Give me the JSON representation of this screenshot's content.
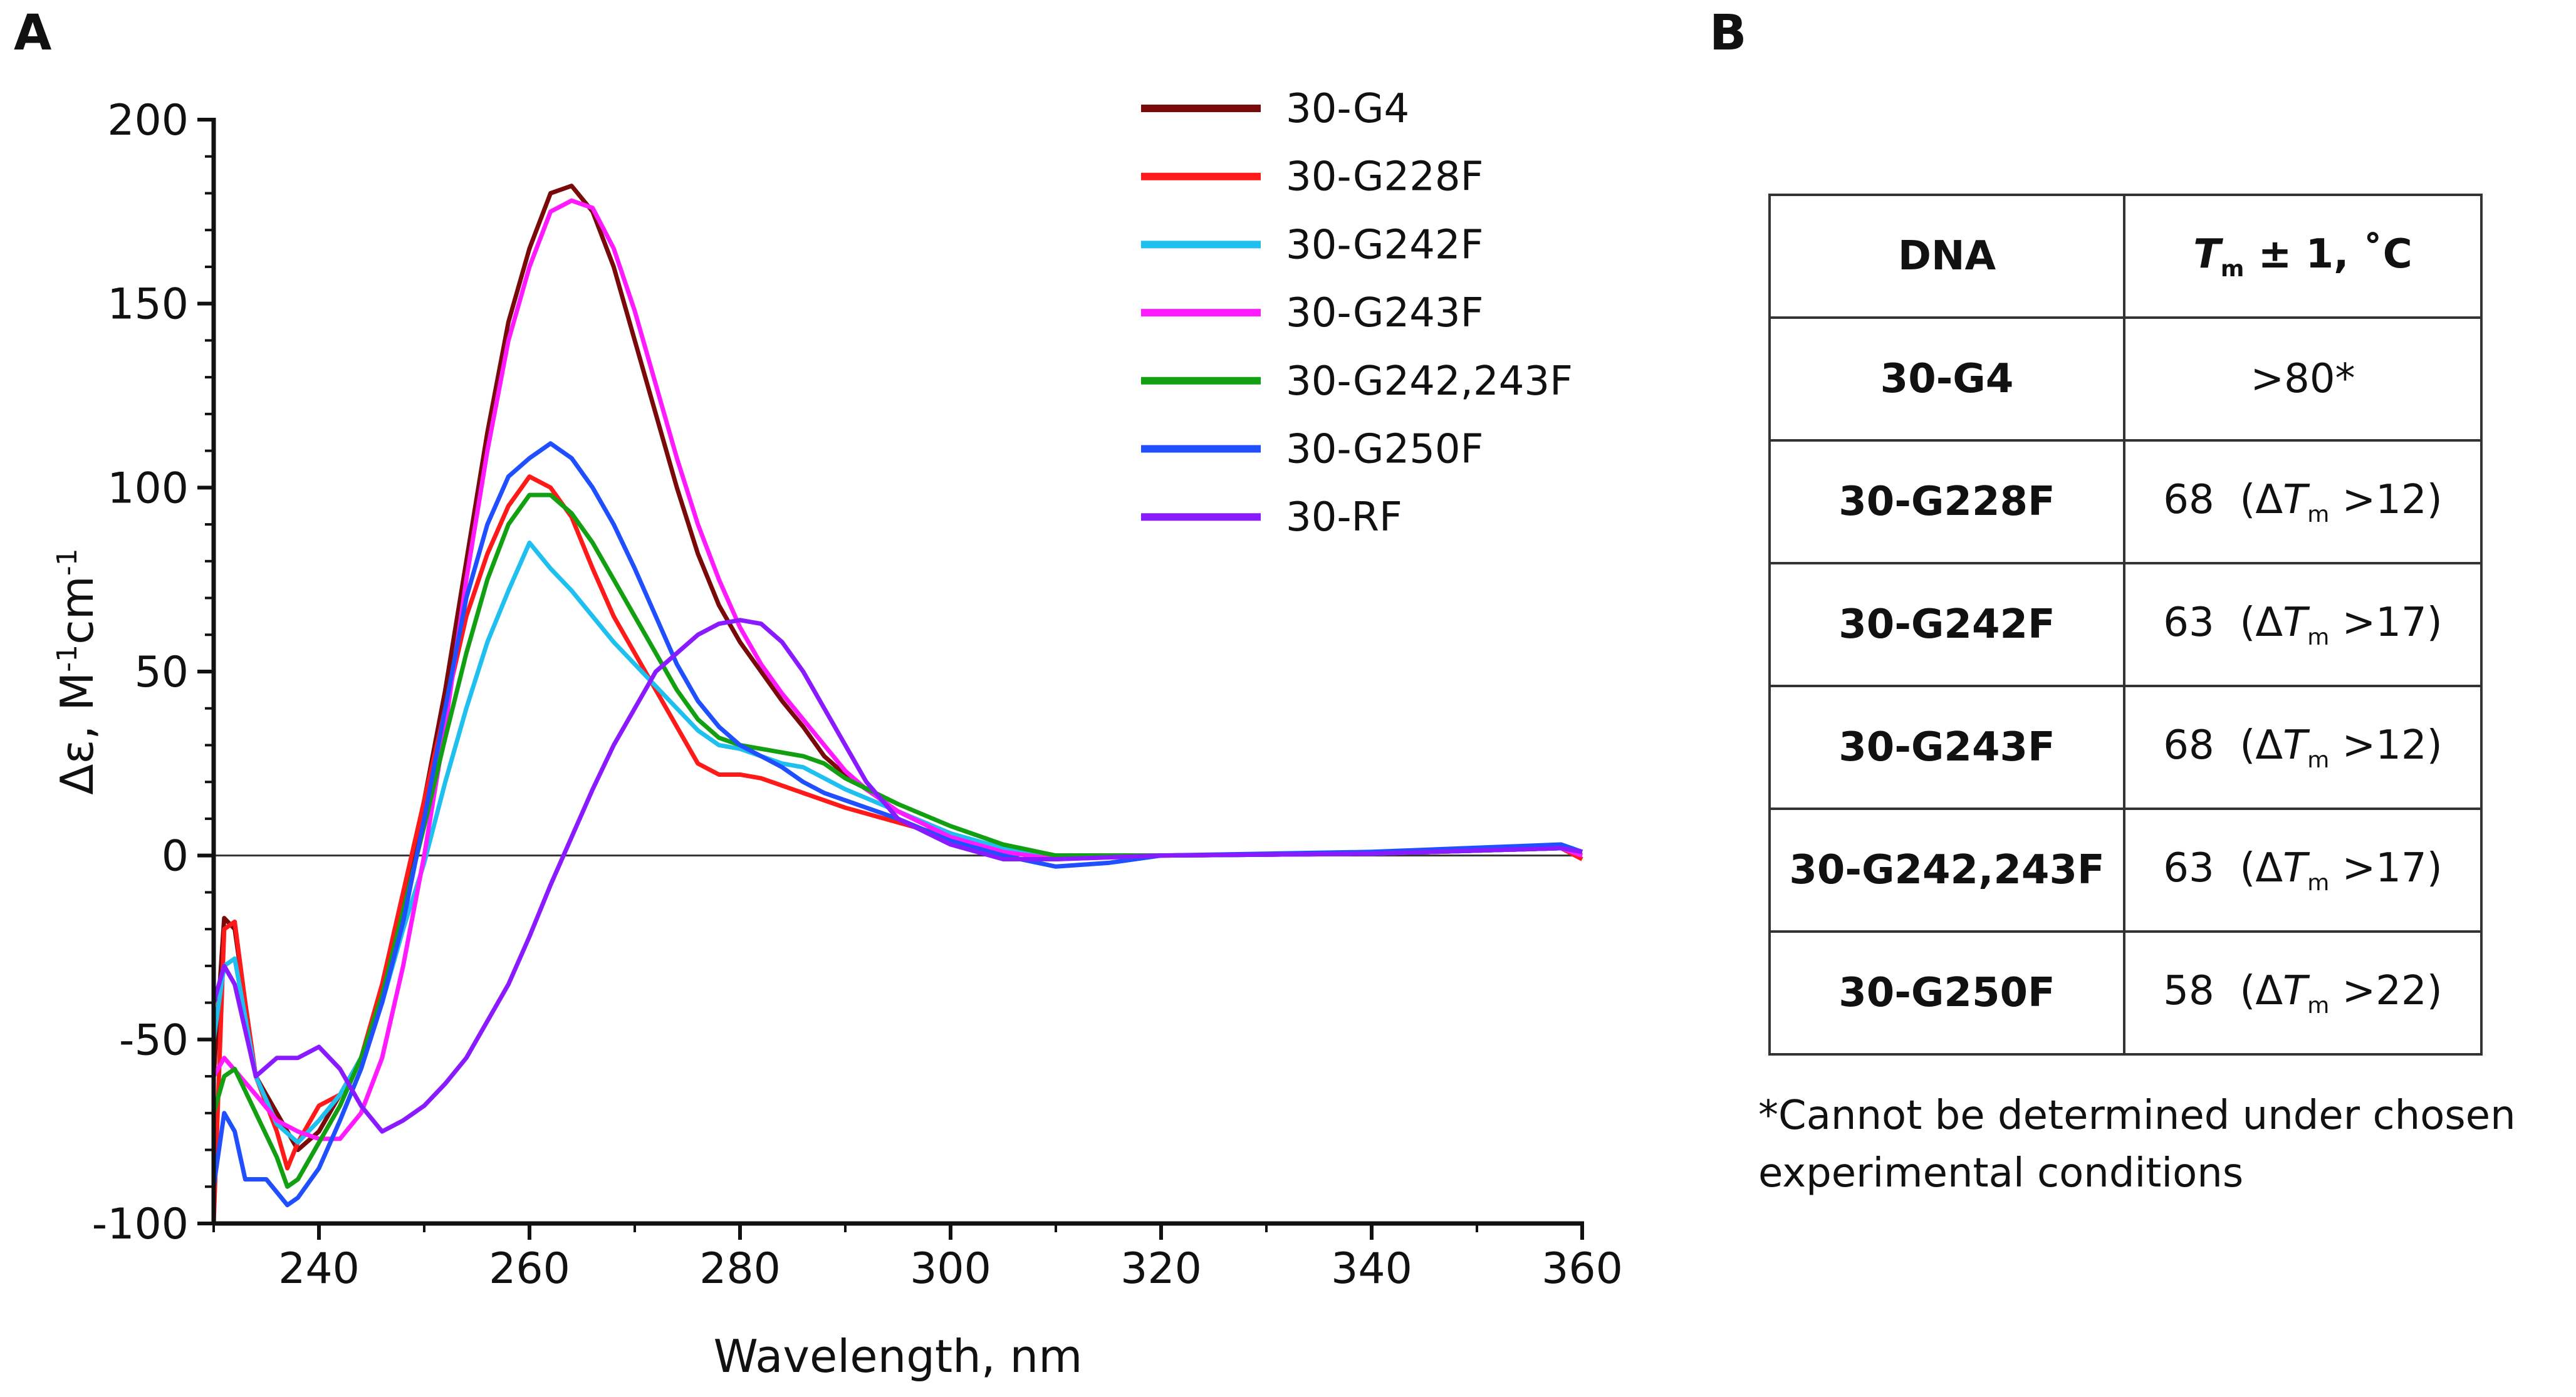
{
  "panel_a_label": "A",
  "panel_b_label": "B",
  "chart_data": {
    "type": "line",
    "xlabel": "Wavelength, nm",
    "ylabel_main": "Δε, M",
    "ylabel_sup1": "-1",
    "ylabel_mid": "cm",
    "ylabel_sup2": "-1",
    "xlim": [
      230,
      360
    ],
    "ylim": [
      -100,
      200
    ],
    "xticks": [
      240,
      260,
      280,
      300,
      320,
      340,
      360
    ],
    "yticks": [
      -100,
      -50,
      0,
      50,
      100,
      150,
      200
    ],
    "legend_position": "top-right",
    "zero_line": true,
    "series": [
      {
        "name": "30-G4",
        "color": "#7a0a0a",
        "points": [
          [
            230,
            -60
          ],
          [
            231,
            -17
          ],
          [
            232,
            -20
          ],
          [
            234,
            -60
          ],
          [
            236,
            -70
          ],
          [
            238,
            -80
          ],
          [
            240,
            -75
          ],
          [
            242,
            -65
          ],
          [
            244,
            -55
          ],
          [
            246,
            -40
          ],
          [
            248,
            -15
          ],
          [
            250,
            15
          ],
          [
            252,
            45
          ],
          [
            254,
            80
          ],
          [
            256,
            115
          ],
          [
            258,
            145
          ],
          [
            260,
            165
          ],
          [
            262,
            180
          ],
          [
            264,
            182
          ],
          [
            266,
            175
          ],
          [
            268,
            160
          ],
          [
            270,
            140
          ],
          [
            272,
            120
          ],
          [
            274,
            100
          ],
          [
            276,
            82
          ],
          [
            278,
            68
          ],
          [
            280,
            58
          ],
          [
            282,
            50
          ],
          [
            284,
            42
          ],
          [
            286,
            35
          ],
          [
            288,
            27
          ],
          [
            290,
            22
          ],
          [
            292,
            18
          ],
          [
            295,
            12
          ],
          [
            300,
            6
          ],
          [
            305,
            1
          ],
          [
            310,
            0
          ],
          [
            320,
            0
          ],
          [
            340,
            0.5
          ],
          [
            358,
            2
          ],
          [
            360,
            1
          ]
        ]
      },
      {
        "name": "30-G228F",
        "color": "#ff1a1a",
        "points": [
          [
            230,
            -100
          ],
          [
            231,
            -20
          ],
          [
            232,
            -18
          ],
          [
            233,
            -40
          ],
          [
            234,
            -60
          ],
          [
            236,
            -75
          ],
          [
            237,
            -85
          ],
          [
            238,
            -78
          ],
          [
            240,
            -68
          ],
          [
            242,
            -65
          ],
          [
            244,
            -55
          ],
          [
            246,
            -35
          ],
          [
            248,
            -10
          ],
          [
            250,
            15
          ],
          [
            252,
            40
          ],
          [
            254,
            65
          ],
          [
            256,
            82
          ],
          [
            258,
            95
          ],
          [
            260,
            103
          ],
          [
            262,
            100
          ],
          [
            264,
            92
          ],
          [
            266,
            78
          ],
          [
            268,
            65
          ],
          [
            270,
            55
          ],
          [
            272,
            45
          ],
          [
            274,
            35
          ],
          [
            276,
            25
          ],
          [
            278,
            22
          ],
          [
            280,
            22
          ],
          [
            282,
            21
          ],
          [
            284,
            19
          ],
          [
            286,
            17
          ],
          [
            288,
            15
          ],
          [
            290,
            13
          ],
          [
            295,
            9
          ],
          [
            300,
            5
          ],
          [
            305,
            2
          ],
          [
            310,
            0
          ],
          [
            320,
            0
          ],
          [
            340,
            0.5
          ],
          [
            358,
            2
          ],
          [
            360,
            -1
          ]
        ]
      },
      {
        "name": "30-G242F",
        "color": "#1fbfef",
        "points": [
          [
            230,
            -50
          ],
          [
            231,
            -30
          ],
          [
            232,
            -28
          ],
          [
            234,
            -60
          ],
          [
            236,
            -73
          ],
          [
            238,
            -78
          ],
          [
            240,
            -72
          ],
          [
            242,
            -65
          ],
          [
            244,
            -55
          ],
          [
            246,
            -40
          ],
          [
            248,
            -20
          ],
          [
            250,
            -2
          ],
          [
            252,
            20
          ],
          [
            254,
            40
          ],
          [
            256,
            58
          ],
          [
            258,
            72
          ],
          [
            260,
            85
          ],
          [
            262,
            78
          ],
          [
            264,
            72
          ],
          [
            266,
            65
          ],
          [
            268,
            58
          ],
          [
            270,
            52
          ],
          [
            272,
            46
          ],
          [
            274,
            40
          ],
          [
            276,
            34
          ],
          [
            278,
            30
          ],
          [
            280,
            29
          ],
          [
            282,
            27
          ],
          [
            284,
            25
          ],
          [
            286,
            24
          ],
          [
            288,
            21
          ],
          [
            290,
            18
          ],
          [
            295,
            12
          ],
          [
            300,
            6
          ],
          [
            305,
            2
          ],
          [
            310,
            0
          ],
          [
            320,
            0
          ],
          [
            340,
            0.5
          ],
          [
            358,
            2
          ],
          [
            360,
            1
          ]
        ]
      },
      {
        "name": "30-G243F",
        "color": "#ff1aff",
        "points": [
          [
            230,
            -60
          ],
          [
            231,
            -55
          ],
          [
            234,
            -65
          ],
          [
            236,
            -72
          ],
          [
            238,
            -75
          ],
          [
            240,
            -77
          ],
          [
            242,
            -77
          ],
          [
            244,
            -70
          ],
          [
            246,
            -55
          ],
          [
            248,
            -30
          ],
          [
            250,
            0
          ],
          [
            252,
            35
          ],
          [
            254,
            75
          ],
          [
            256,
            110
          ],
          [
            258,
            140
          ],
          [
            260,
            160
          ],
          [
            262,
            175
          ],
          [
            264,
            178
          ],
          [
            266,
            176
          ],
          [
            268,
            165
          ],
          [
            270,
            148
          ],
          [
            272,
            128
          ],
          [
            274,
            108
          ],
          [
            276,
            90
          ],
          [
            278,
            75
          ],
          [
            280,
            62
          ],
          [
            282,
            52
          ],
          [
            284,
            44
          ],
          [
            286,
            37
          ],
          [
            288,
            30
          ],
          [
            290,
            23
          ],
          [
            292,
            18
          ],
          [
            295,
            12
          ],
          [
            300,
            5
          ],
          [
            305,
            1
          ],
          [
            310,
            -1
          ],
          [
            320,
            0
          ],
          [
            340,
            0.5
          ],
          [
            358,
            2
          ],
          [
            360,
            0
          ]
        ]
      },
      {
        "name": "30-G242,243F",
        "color": "#12a012",
        "points": [
          [
            230,
            -70
          ],
          [
            231,
            -60
          ],
          [
            232,
            -58
          ],
          [
            234,
            -70
          ],
          [
            236,
            -82
          ],
          [
            237,
            -90
          ],
          [
            238,
            -88
          ],
          [
            240,
            -78
          ],
          [
            242,
            -68
          ],
          [
            244,
            -55
          ],
          [
            246,
            -38
          ],
          [
            248,
            -15
          ],
          [
            250,
            8
          ],
          [
            252,
            32
          ],
          [
            254,
            55
          ],
          [
            256,
            75
          ],
          [
            258,
            90
          ],
          [
            260,
            98
          ],
          [
            262,
            98
          ],
          [
            264,
            93
          ],
          [
            266,
            85
          ],
          [
            268,
            75
          ],
          [
            270,
            65
          ],
          [
            272,
            55
          ],
          [
            274,
            45
          ],
          [
            276,
            37
          ],
          [
            278,
            32
          ],
          [
            280,
            30
          ],
          [
            282,
            29
          ],
          [
            284,
            28
          ],
          [
            286,
            27
          ],
          [
            288,
            25
          ],
          [
            290,
            21
          ],
          [
            295,
            14
          ],
          [
            300,
            8
          ],
          [
            305,
            3
          ],
          [
            310,
            0
          ],
          [
            320,
            0
          ],
          [
            340,
            0.5
          ],
          [
            358,
            2
          ],
          [
            360,
            1
          ]
        ]
      },
      {
        "name": "30-G250F",
        "color": "#1f4fff",
        "points": [
          [
            230,
            -90
          ],
          [
            231,
            -70
          ],
          [
            232,
            -75
          ],
          [
            233,
            -88
          ],
          [
            235,
            -88
          ],
          [
            237,
            -95
          ],
          [
            238,
            -93
          ],
          [
            240,
            -85
          ],
          [
            242,
            -72
          ],
          [
            244,
            -58
          ],
          [
            246,
            -40
          ],
          [
            248,
            -18
          ],
          [
            250,
            10
          ],
          [
            252,
            40
          ],
          [
            254,
            70
          ],
          [
            256,
            90
          ],
          [
            258,
            103
          ],
          [
            260,
            108
          ],
          [
            262,
            112
          ],
          [
            264,
            108
          ],
          [
            266,
            100
          ],
          [
            268,
            90
          ],
          [
            270,
            78
          ],
          [
            272,
            65
          ],
          [
            274,
            52
          ],
          [
            276,
            42
          ],
          [
            278,
            35
          ],
          [
            280,
            30
          ],
          [
            282,
            27
          ],
          [
            284,
            24
          ],
          [
            286,
            20
          ],
          [
            288,
            17
          ],
          [
            290,
            15
          ],
          [
            295,
            10
          ],
          [
            300,
            4
          ],
          [
            305,
            0
          ],
          [
            310,
            -3
          ],
          [
            315,
            -2
          ],
          [
            320,
            0
          ],
          [
            340,
            1
          ],
          [
            358,
            3
          ],
          [
            360,
            1
          ]
        ]
      },
      {
        "name": "30-RF",
        "color": "#8a1aff",
        "points": [
          [
            230,
            -40
          ],
          [
            231,
            -30
          ],
          [
            232,
            -35
          ],
          [
            234,
            -60
          ],
          [
            236,
            -55
          ],
          [
            238,
            -55
          ],
          [
            240,
            -52
          ],
          [
            242,
            -58
          ],
          [
            244,
            -68
          ],
          [
            246,
            -75
          ],
          [
            248,
            -72
          ],
          [
            250,
            -68
          ],
          [
            252,
            -62
          ],
          [
            254,
            -55
          ],
          [
            256,
            -45
          ],
          [
            258,
            -35
          ],
          [
            260,
            -22
          ],
          [
            262,
            -8
          ],
          [
            264,
            5
          ],
          [
            266,
            18
          ],
          [
            268,
            30
          ],
          [
            270,
            40
          ],
          [
            272,
            50
          ],
          [
            274,
            55
          ],
          [
            276,
            60
          ],
          [
            278,
            63
          ],
          [
            280,
            64
          ],
          [
            282,
            63
          ],
          [
            284,
            58
          ],
          [
            286,
            50
          ],
          [
            288,
            40
          ],
          [
            290,
            30
          ],
          [
            292,
            20
          ],
          [
            295,
            10
          ],
          [
            300,
            3
          ],
          [
            305,
            -1
          ],
          [
            310,
            -1
          ],
          [
            320,
            0
          ],
          [
            340,
            0.5
          ],
          [
            358,
            2
          ],
          [
            360,
            1
          ]
        ]
      }
    ]
  },
  "table": {
    "header_dna": "DNA",
    "header_t": "T",
    "header_sub": "m",
    "header_rest": " ± 1, ˚C",
    "delta_open": "(Δ",
    "delta_t": "T",
    "delta_sub": "m",
    "rows": [
      {
        "dna": "30-G4",
        "tm": ">80*",
        "delta": ""
      },
      {
        "dna": "30-G228F",
        "tm": "68",
        "delta": ">12)"
      },
      {
        "dna": "30-G242F",
        "tm": "63",
        "delta": ">17)"
      },
      {
        "dna": "30-G243F",
        "tm": "68",
        "delta": ">12)"
      },
      {
        "dna": "30-G242,243F",
        "tm": "63",
        "delta": ">17)"
      },
      {
        "dna": "30-G250F",
        "tm": "58",
        "delta": ">22)"
      }
    ],
    "footnote": "*Cannot be determined under chosen experimental conditions"
  }
}
